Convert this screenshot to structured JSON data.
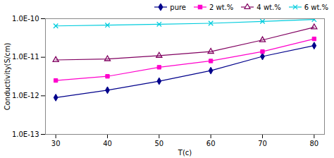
{
  "chart_data": {
    "type": "line",
    "xlabel": "T(c)",
    "ylabel": "Conductivity(S/cm)",
    "x": [
      30,
      40,
      50,
      60,
      70,
      80
    ],
    "series": [
      {
        "name": "pure",
        "color": "#00008B",
        "marker": "diamond",
        "values": [
          9e-13,
          1.4e-12,
          2.4e-12,
          4.5e-12,
          1.05e-11,
          2e-11
        ]
      },
      {
        "name": "2 wt.%",
        "color": "#FF00CC",
        "marker": "square",
        "values": [
          2.5e-12,
          3.2e-12,
          5.5e-12,
          8e-12,
          1.4e-11,
          3e-11
        ]
      },
      {
        "name": "4 wt.%",
        "color": "#800060",
        "marker": "open_triangle",
        "values": [
          8.5e-12,
          9e-12,
          1.1e-11,
          1.4e-11,
          2.8e-11,
          6e-11
        ]
      },
      {
        "name": "6 wt.%",
        "color": "#00CCDD",
        "marker": "x",
        "values": [
          6.5e-11,
          6.8e-11,
          7.2e-11,
          7.6e-11,
          8.5e-11,
          9.5e-11
        ]
      }
    ],
    "xlim": [
      28,
      82
    ],
    "ylim": [
      1e-13,
      1e-10
    ],
    "xticks": [
      30,
      40,
      50,
      60,
      70,
      80
    ],
    "yticks": [
      {
        "value": 1e-13,
        "label": "1.0E-13"
      },
      {
        "value": 1e-12,
        "label": "1.0E-12"
      },
      {
        "value": 1e-11,
        "label": "1.0E-11"
      },
      {
        "value": 1e-10,
        "label": "1.0E-10"
      }
    ],
    "log": "y",
    "grid": false,
    "legend": "upper right"
  }
}
